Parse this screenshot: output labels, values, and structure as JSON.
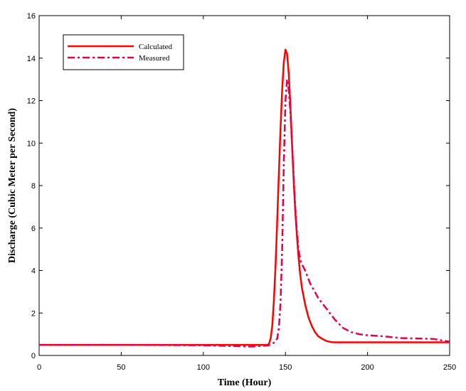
{
  "chart_data": {
    "type": "line",
    "title": "",
    "xlabel": "Time (Hour)",
    "ylabel": "Discharge (Cubic Meter per Second)",
    "xlim": [
      0,
      250
    ],
    "ylim": [
      0,
      16
    ],
    "xticks": [
      0,
      50,
      100,
      150,
      200,
      250
    ],
    "yticks": [
      0,
      2,
      4,
      6,
      8,
      10,
      12,
      14,
      16
    ],
    "grid": false,
    "legend_position": "top-left",
    "series": [
      {
        "name": "Calculated",
        "color": "#ff0000",
        "style": "solid",
        "x": [
          0,
          100,
          139,
          140,
          141,
          142,
          143,
          144,
          145,
          146,
          147,
          148,
          149,
          150,
          151,
          152,
          153,
          154,
          155,
          156,
          157,
          158,
          159,
          160,
          162,
          164,
          166,
          168,
          170,
          172,
          175,
          178,
          180,
          190,
          200,
          250
        ],
        "y": [
          0.5,
          0.5,
          0.5,
          0.55,
          0.8,
          1.4,
          2.6,
          4.3,
          6.4,
          8.6,
          10.7,
          12.5,
          13.8,
          14.4,
          14.2,
          13.3,
          11.8,
          10.0,
          8.3,
          6.8,
          5.6,
          4.6,
          3.8,
          3.2,
          2.4,
          1.8,
          1.4,
          1.1,
          0.9,
          0.8,
          0.68,
          0.63,
          0.62,
          0.62,
          0.62,
          0.62
        ]
      },
      {
        "name": "Measured",
        "color": "#e6004c",
        "style": "dashdot",
        "x": [
          0,
          50,
          100,
          115,
          130,
          140,
          143,
          145,
          146,
          147,
          148,
          149,
          150,
          151,
          152,
          153,
          154,
          155,
          156,
          157,
          158,
          159,
          160,
          162,
          165,
          170,
          175,
          180,
          185,
          190,
          195,
          200,
          210,
          220,
          230,
          240,
          250
        ],
        "y": [
          0.5,
          0.5,
          0.48,
          0.45,
          0.42,
          0.48,
          0.6,
          0.8,
          1.3,
          2.5,
          5.0,
          9.0,
          12.0,
          13.0,
          12.5,
          11.5,
          10.0,
          8.5,
          7.0,
          5.8,
          5.0,
          4.5,
          4.3,
          4.0,
          3.4,
          2.7,
          2.2,
          1.7,
          1.3,
          1.1,
          1.0,
          0.95,
          0.9,
          0.82,
          0.8,
          0.78,
          0.65
        ]
      }
    ]
  }
}
